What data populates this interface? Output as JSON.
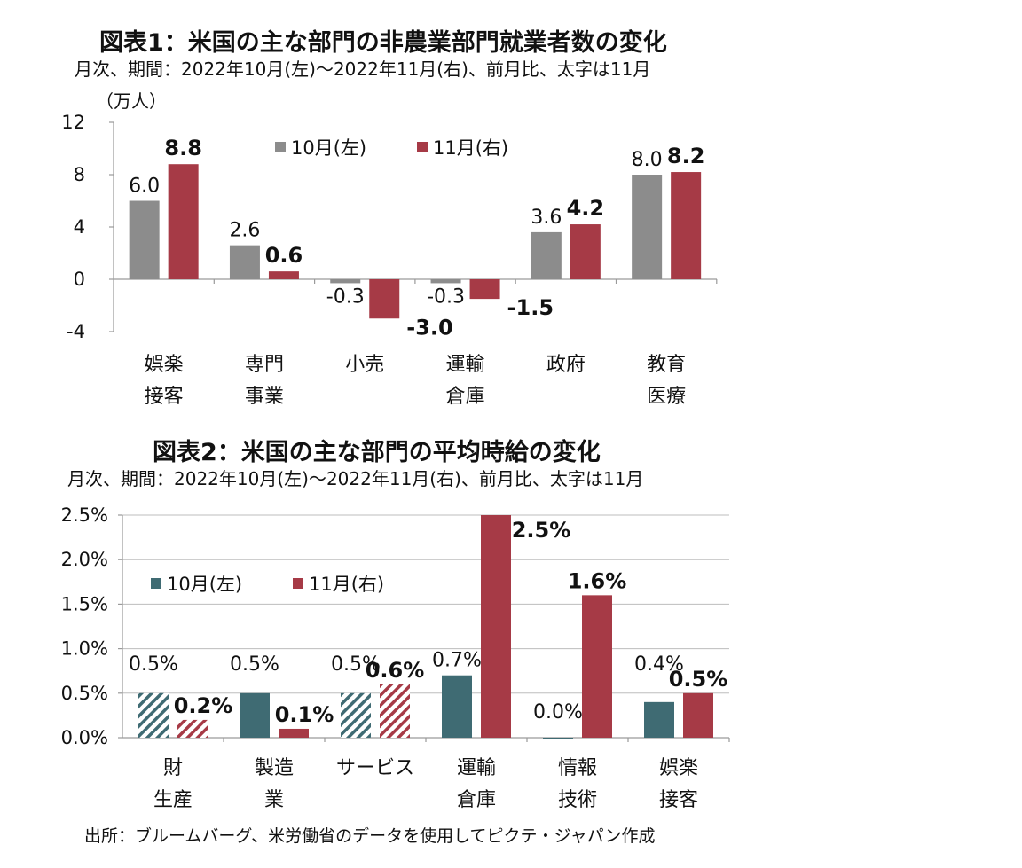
{
  "page": {
    "source": "出所：ブルームバーグ、米労働省のデータを使用してピクテ・ジャパン作成"
  },
  "chart_data": [
    {
      "type": "bar",
      "title": "図表1：米国の主な部門の非農業部門就業者数の変化",
      "subtitle": "月次、期間：2022年10月(左)～2022年11月(右)、前月比、太字は11月",
      "unit": "（万人）",
      "categories": [
        [
          "娯楽",
          "接客"
        ],
        [
          "専門",
          "事業"
        ],
        [
          "小売"
        ],
        [
          "運輸",
          "倉庫"
        ],
        [
          "政府"
        ],
        [
          "教育",
          "医療"
        ]
      ],
      "series": [
        {
          "name": "10月(左)",
          "values": [
            6.0,
            2.6,
            -0.3,
            -0.3,
            3.6,
            8.0
          ],
          "labels": [
            "6.0",
            "2.6",
            "-0.3",
            "-0.3",
            "3.6",
            "8.0"
          ],
          "color": "#8c8c8c"
        },
        {
          "name": "11月(右)",
          "values": [
            8.8,
            0.6,
            -3.0,
            -1.5,
            4.2,
            8.2
          ],
          "labels": [
            "8.8",
            "0.6",
            "-3.0",
            "-1.5",
            "4.2",
            "8.2"
          ],
          "color": "#a63a46"
        }
      ],
      "ylim": [
        -4,
        12
      ],
      "yticks": [
        -4,
        0,
        4,
        8,
        12
      ],
      "ytick_labels": [
        "-4",
        "0",
        "4",
        "8",
        "12"
      ],
      "grid": false,
      "legend": "top-center"
    },
    {
      "type": "bar",
      "title": "図表2：米国の主な部門の平均時給の変化",
      "subtitle": "月次、期間：2022年10月(左)～2022年11月(右)、前月比、太字は11月",
      "categories": [
        [
          "財",
          "生産"
        ],
        [
          "製造",
          "業"
        ],
        [
          "サービス"
        ],
        [
          "運輸",
          "倉庫"
        ],
        [
          "情報",
          "技術"
        ],
        [
          "娯楽",
          "接客"
        ]
      ],
      "series": [
        {
          "name": "10月(左)",
          "values": [
            0.5,
            0.5,
            0.5,
            0.7,
            0.0,
            0.4
          ],
          "labels": [
            "0.5%",
            "0.5%",
            "0.5%",
            "0.7%",
            "0.0%",
            "0.4%"
          ],
          "color": "#3f6b73",
          "hatched": [
            true,
            false,
            true,
            false,
            false,
            false
          ]
        },
        {
          "name": "11月(右)",
          "values": [
            0.2,
            0.1,
            0.6,
            2.5,
            1.6,
            0.5
          ],
          "labels": [
            "0.2%",
            "0.1%",
            "0.6%",
            "2.5%",
            "1.6%",
            "0.5%"
          ],
          "color": "#a63a46",
          "hatched": [
            true,
            false,
            true,
            false,
            false,
            false
          ]
        }
      ],
      "ylim": [
        0,
        2.5
      ],
      "yticks": [
        0,
        0.5,
        1.0,
        1.5,
        2.0,
        2.5
      ],
      "ytick_labels": [
        "0.0%",
        "0.5%",
        "1.0%",
        "1.5%",
        "2.0%",
        "2.5%"
      ],
      "grid": true,
      "legend": "top-left"
    }
  ]
}
